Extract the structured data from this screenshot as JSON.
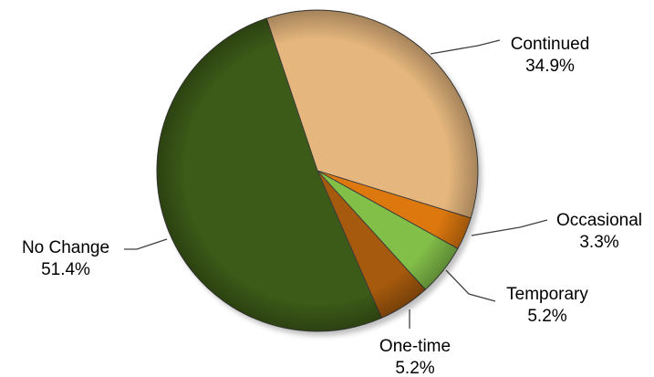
{
  "chart_data": {
    "type": "pie",
    "title": "",
    "start_angle_deg": -18.5,
    "direction": "clockwise",
    "slices": [
      {
        "label": "Continued",
        "value": 34.9,
        "value_label": "34.9%",
        "color": "#e5b67d"
      },
      {
        "label": "Occasional",
        "value": 3.3,
        "value_label": "3.3%",
        "color": "#dd780f"
      },
      {
        "label": "Temporary",
        "value": 5.2,
        "value_label": "5.2%",
        "color": "#82bf49"
      },
      {
        "label": "One-time",
        "value": 5.2,
        "value_label": "5.2%",
        "color": "#a65a0d"
      },
      {
        "label": "No Change",
        "value": 51.4,
        "value_label": "51.4%",
        "color": "#3d5b18"
      }
    ],
    "legend": "none",
    "data_labels": "outside with leader lines"
  }
}
